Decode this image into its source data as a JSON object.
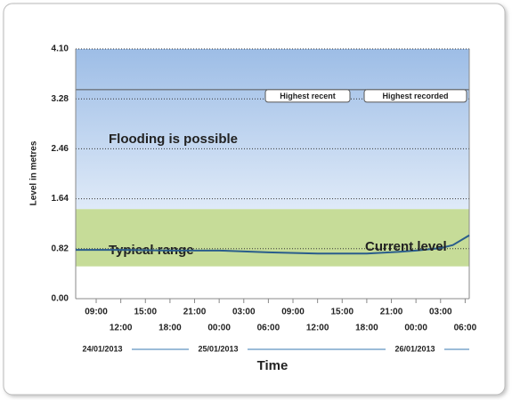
{
  "chart_data": {
    "type": "line",
    "y_label": "Level in metres",
    "x_label": "Time",
    "ylim": [
      0,
      4.1
    ],
    "yticks": [
      {
        "value": 0,
        "label": "0.00"
      },
      0.82,
      1.64,
      2.46,
      3.28,
      {
        "value": 4.1,
        "label": "4.10"
      }
    ],
    "xlim": [
      6.5,
      54.5
    ],
    "xticks": [
      {
        "value": 9,
        "label": "09:00"
      },
      {
        "value": 12,
        "label": "12:00"
      },
      {
        "value": 15,
        "label": "15:00"
      },
      {
        "value": 18,
        "label": "18:00"
      },
      {
        "value": 21,
        "label": "21:00"
      },
      {
        "value": 24,
        "label": "00:00"
      },
      {
        "value": 27,
        "label": "03:00"
      },
      {
        "value": 30,
        "label": "06:00"
      },
      {
        "value": 33,
        "label": "09:00"
      },
      {
        "value": 36,
        "label": "12:00"
      },
      {
        "value": 39,
        "label": "15:00"
      },
      {
        "value": 42,
        "label": "18:00"
      },
      {
        "value": 45,
        "label": "21:00"
      },
      {
        "value": 48,
        "label": "00:00"
      },
      {
        "value": 51,
        "label": "03:00"
      },
      {
        "value": 54,
        "label": "06:00"
      }
    ],
    "dates": [
      "24/01/2013",
      "25/01/2013",
      "26/01/2013"
    ],
    "grid": true,
    "bands": [
      {
        "name": "Flooding is possible",
        "from": 1.47,
        "to": 4.1,
        "color": "#a9c6ea"
      },
      {
        "name": "Typical range",
        "from": 0.53,
        "to": 1.47,
        "color": "#c6dc98"
      }
    ],
    "thresholds": [
      {
        "name": "Highest recent",
        "value": 3.43
      },
      {
        "name": "Highest recorded",
        "value": 3.43
      }
    ],
    "series": [
      {
        "name": "Current level",
        "color": "#2a5d8c",
        "x": [
          6.5,
          12,
          18,
          24,
          30,
          36,
          42,
          46,
          48,
          51,
          52.5,
          54.5
        ],
        "values": [
          0.8,
          0.8,
          0.79,
          0.79,
          0.76,
          0.74,
          0.74,
          0.77,
          0.79,
          0.83,
          0.88,
          1.04
        ]
      }
    ]
  }
}
